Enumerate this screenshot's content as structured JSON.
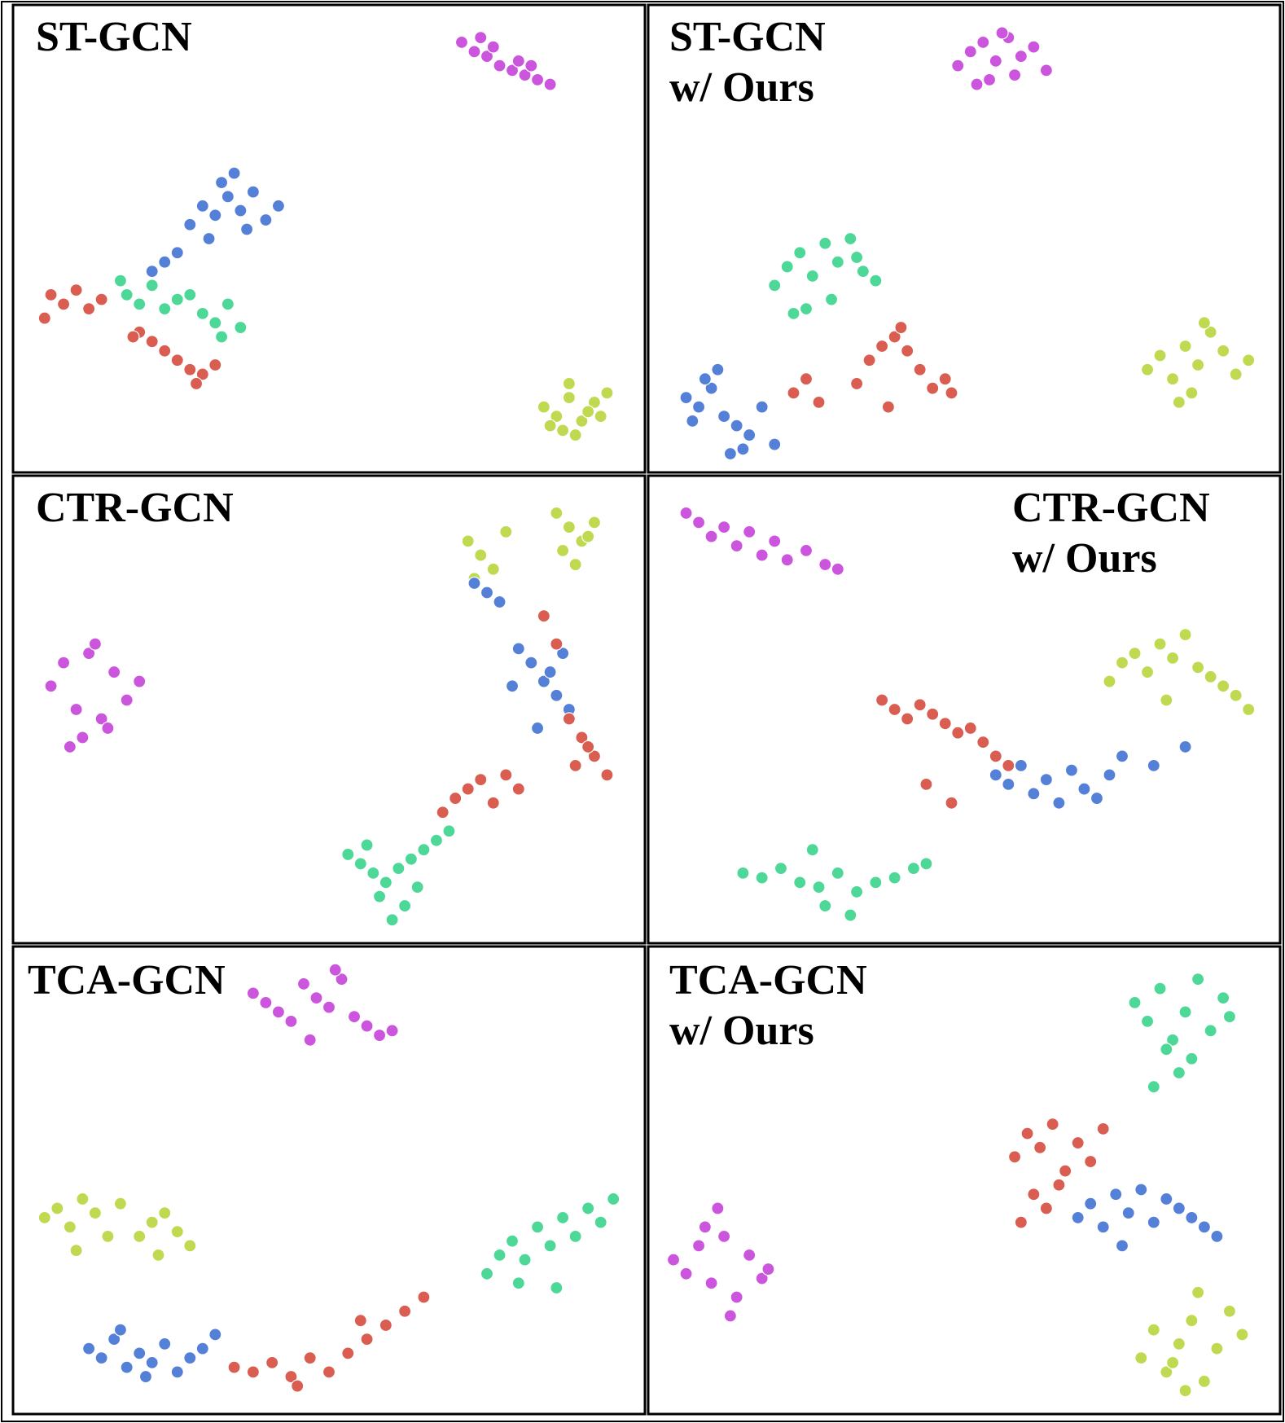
{
  "chart_data": [
    {
      "type": "scatter",
      "title": [
        "ST-GCN"
      ],
      "xlim": [
        0,
        100
      ],
      "ylim": [
        0,
        100
      ],
      "series": [
        {
          "color": "#cc55dd",
          "x": [
            71,
            73,
            75,
            77,
            79,
            81,
            83,
            85,
            76,
            80,
            74,
            82
          ],
          "y": [
            92,
            90,
            89,
            87,
            86,
            85,
            84,
            83,
            91,
            88,
            93,
            87
          ]
        },
        {
          "color": "#5580d8",
          "x": [
            28,
            30,
            32,
            34,
            36,
            38,
            40,
            42,
            33,
            37,
            26,
            24,
            22,
            35,
            31
          ],
          "y": [
            53,
            57,
            55,
            59,
            56,
            60,
            54,
            57,
            62,
            52,
            47,
            45,
            43,
            64,
            50
          ]
        },
        {
          "color": "#4ed898",
          "x": [
            18,
            20,
            22,
            24,
            26,
            30,
            32,
            34,
            36,
            17,
            28,
            33
          ],
          "y": [
            38,
            36,
            40,
            35,
            37,
            34,
            32,
            36,
            31,
            41,
            38,
            29
          ]
        },
        {
          "color": "#d95d50",
          "x": [
            6,
            8,
            10,
            12,
            14,
            20,
            22,
            26,
            28,
            30,
            32,
            19,
            5,
            24,
            29
          ],
          "y": [
            38,
            36,
            39,
            35,
            37,
            30,
            28,
            24,
            22,
            21,
            23,
            29,
            33,
            26,
            19
          ]
        },
        {
          "color": "#bfda50",
          "x": [
            84,
            86,
            88,
            90,
            92,
            94,
            87,
            89,
            91,
            85,
            93,
            88
          ],
          "y": [
            14,
            12,
            16,
            11,
            15,
            17,
            9,
            8,
            13,
            10,
            12,
            19
          ]
        }
      ]
    },
    {
      "type": "scatter",
      "title": [
        "ST-GCN",
        "w/ Ours"
      ],
      "xlim": [
        0,
        100
      ],
      "ylim": [
        0,
        100
      ],
      "series": [
        {
          "color": "#cc55dd",
          "x": [
            49,
            51,
            53,
            55,
            57,
            59,
            61,
            63,
            54,
            58,
            52,
            56
          ],
          "y": [
            87,
            90,
            92,
            88,
            93,
            89,
            91,
            86,
            84,
            85,
            83,
            94
          ]
        },
        {
          "color": "#4ed898",
          "x": [
            20,
            22,
            24,
            26,
            28,
            30,
            32,
            34,
            36,
            25,
            29,
            23,
            33
          ],
          "y": [
            40,
            44,
            47,
            42,
            49,
            45,
            50,
            43,
            41,
            35,
            37,
            34,
            46
          ]
        },
        {
          "color": "#d95d50",
          "x": [
            23,
            25,
            27,
            33,
            35,
            37,
            39,
            41,
            43,
            45,
            47,
            48,
            38,
            40
          ],
          "y": [
            17,
            20,
            15,
            19,
            24,
            27,
            29,
            26,
            22,
            18,
            20,
            17,
            14,
            31
          ]
        },
        {
          "color": "#5580d8",
          "x": [
            6,
            8,
            10,
            12,
            14,
            16,
            18,
            20,
            9,
            13,
            11,
            15,
            7
          ],
          "y": [
            16,
            14,
            18,
            12,
            10,
            8,
            14,
            6,
            20,
            4,
            22,
            5,
            11
          ]
        },
        {
          "color": "#bfda50",
          "x": [
            79,
            81,
            83,
            85,
            87,
            89,
            91,
            93,
            95,
            86,
            88,
            84
          ],
          "y": [
            22,
            25,
            20,
            27,
            23,
            30,
            26,
            21,
            24,
            17,
            32,
            15
          ]
        }
      ]
    },
    {
      "type": "scatter",
      "title": [
        "CTR-GCN"
      ],
      "xlim": [
        0,
        100
      ],
      "ylim": [
        0,
        100
      ],
      "series": [
        {
          "color": "#cc55dd",
          "x": [
            6,
            8,
            10,
            12,
            14,
            16,
            18,
            20,
            11,
            13,
            9,
            15
          ],
          "y": [
            55,
            60,
            50,
            62,
            48,
            58,
            52,
            56,
            44,
            64,
            42,
            46
          ]
        },
        {
          "color": "#bfda50",
          "x": [
            72,
            74,
            76,
            78,
            73,
            86,
            88,
            90,
            92,
            87,
            91,
            89
          ],
          "y": [
            86,
            83,
            80,
            88,
            78,
            92,
            89,
            86,
            90,
            84,
            87,
            81
          ]
        },
        {
          "color": "#5580d8",
          "x": [
            73,
            75,
            77,
            80,
            82,
            84,
            86,
            88,
            85,
            83,
            87,
            79
          ],
          "y": [
            77,
            75,
            73,
            63,
            60,
            56,
            53,
            50,
            58,
            46,
            62,
            55
          ]
        },
        {
          "color": "#d95d50",
          "x": [
            84,
            86,
            88,
            90,
            92,
            94,
            89,
            91,
            80,
            78,
            76,
            72,
            68,
            74,
            70
          ],
          "y": [
            70,
            64,
            48,
            44,
            40,
            36,
            38,
            42,
            33,
            36,
            30,
            33,
            28,
            35,
            31
          ]
        },
        {
          "color": "#4ed898",
          "x": [
            53,
            55,
            57,
            59,
            61,
            63,
            65,
            67,
            69,
            58,
            62,
            60,
            64,
            56
          ],
          "y": [
            19,
            17,
            15,
            13,
            16,
            18,
            20,
            22,
            24,
            10,
            8,
            5,
            12,
            21
          ]
        }
      ]
    },
    {
      "type": "scatter",
      "title": [
        "CTR-GCN",
        "w/ Ours"
      ],
      "xlim": [
        0,
        100
      ],
      "ylim": [
        0,
        100
      ],
      "series": [
        {
          "color": "#cc55dd",
          "x": [
            6,
            8,
            10,
            12,
            14,
            16,
            18,
            20,
            22,
            25,
            28,
            30
          ],
          "y": [
            92,
            90,
            87,
            89,
            85,
            88,
            83,
            86,
            82,
            84,
            81,
            80
          ]
        },
        {
          "color": "#bfda50",
          "x": [
            73,
            75,
            77,
            79,
            81,
            83,
            85,
            87,
            89,
            91,
            93,
            95,
            82
          ],
          "y": [
            56,
            60,
            62,
            58,
            64,
            61,
            66,
            59,
            57,
            55,
            53,
            50,
            52
          ]
        },
        {
          "color": "#d95d50",
          "x": [
            37,
            39,
            41,
            43,
            45,
            47,
            49,
            51,
            53,
            55,
            57,
            44,
            48
          ],
          "y": [
            52,
            50,
            48,
            51,
            49,
            47,
            45,
            46,
            43,
            40,
            38,
            34,
            30
          ]
        },
        {
          "color": "#5580d8",
          "x": [
            55,
            57,
            59,
            61,
            63,
            65,
            67,
            69,
            71,
            73,
            75,
            80,
            85
          ],
          "y": [
            36,
            34,
            38,
            32,
            35,
            30,
            37,
            33,
            31,
            36,
            40,
            38,
            42
          ]
        },
        {
          "color": "#4ed898",
          "x": [
            15,
            18,
            21,
            24,
            27,
            30,
            33,
            36,
            39,
            42,
            44,
            32,
            28,
            26
          ],
          "y": [
            15,
            14,
            16,
            13,
            12,
            15,
            11,
            13,
            14,
            16,
            17,
            6,
            8,
            20
          ]
        }
      ]
    },
    {
      "type": "scatter",
      "title": [
        "TCA-GCN"
      ],
      "xlim": [
        0,
        100
      ],
      "ylim": [
        0,
        100
      ],
      "series": [
        {
          "color": "#cc55dd",
          "x": [
            38,
            40,
            42,
            44,
            46,
            48,
            50,
            52,
            54,
            56,
            58,
            60,
            47,
            51
          ],
          "y": [
            90,
            88,
            86,
            84,
            92,
            89,
            87,
            93,
            85,
            83,
            81,
            82,
            80,
            95
          ]
        },
        {
          "color": "#bfda50",
          "x": [
            5,
            7,
            9,
            11,
            13,
            15,
            17,
            20,
            22,
            24,
            26,
            28,
            10,
            23
          ],
          "y": [
            42,
            44,
            40,
            46,
            43,
            38,
            45,
            38,
            41,
            43,
            39,
            36,
            35,
            34
          ]
        },
        {
          "color": "#5580d8",
          "x": [
            12,
            14,
            16,
            18,
            20,
            22,
            24,
            26,
            28,
            30,
            32,
            17,
            21
          ],
          "y": [
            14,
            12,
            16,
            10,
            13,
            11,
            15,
            9,
            12,
            14,
            17,
            18,
            8
          ]
        },
        {
          "color": "#d95d50",
          "x": [
            35,
            38,
            41,
            44,
            47,
            50,
            53,
            56,
            59,
            62,
            65,
            45,
            55
          ],
          "y": [
            10,
            9,
            11,
            8,
            12,
            9,
            13,
            16,
            19,
            22,
            25,
            6,
            20
          ]
        },
        {
          "color": "#4ed898",
          "x": [
            75,
            77,
            79,
            81,
            83,
            85,
            87,
            89,
            91,
            93,
            95,
            80,
            86
          ],
          "y": [
            30,
            34,
            37,
            33,
            40,
            36,
            42,
            38,
            44,
            41,
            46,
            28,
            27
          ]
        }
      ]
    },
    {
      "type": "scatter",
      "title": [
        "TCA-GCN",
        "w/ Ours"
      ],
      "xlim": [
        0,
        100
      ],
      "ylim": [
        0,
        100
      ],
      "series": [
        {
          "color": "#4ed898",
          "x": [
            77,
            79,
            81,
            83,
            85,
            87,
            89,
            91,
            92,
            84,
            86,
            82,
            80
          ],
          "y": [
            88,
            84,
            91,
            80,
            86,
            93,
            82,
            89,
            85,
            73,
            76,
            78,
            70
          ]
        },
        {
          "color": "#d95d50",
          "x": [
            58,
            60,
            62,
            64,
            66,
            68,
            70,
            72,
            61,
            63,
            65,
            59
          ],
          "y": [
            55,
            60,
            57,
            62,
            52,
            58,
            54,
            61,
            47,
            44,
            49,
            41
          ]
        },
        {
          "color": "#5580d8",
          "x": [
            68,
            70,
            72,
            74,
            76,
            78,
            80,
            82,
            84,
            86,
            88,
            90,
            75
          ],
          "y": [
            42,
            45,
            40,
            47,
            43,
            48,
            41,
            46,
            44,
            42,
            40,
            38,
            36
          ]
        },
        {
          "color": "#cc55dd",
          "x": [
            4,
            6,
            8,
            10,
            12,
            14,
            16,
            18,
            19,
            11,
            13,
            9
          ],
          "y": [
            33,
            30,
            36,
            28,
            38,
            25,
            34,
            29,
            31,
            44,
            21,
            40
          ]
        },
        {
          "color": "#bfda50",
          "x": [
            78,
            80,
            82,
            84,
            86,
            88,
            90,
            92,
            94,
            85,
            87,
            83
          ],
          "y": [
            12,
            18,
            9,
            15,
            20,
            7,
            14,
            22,
            17,
            5,
            26,
            11
          ]
        }
      ]
    }
  ]
}
